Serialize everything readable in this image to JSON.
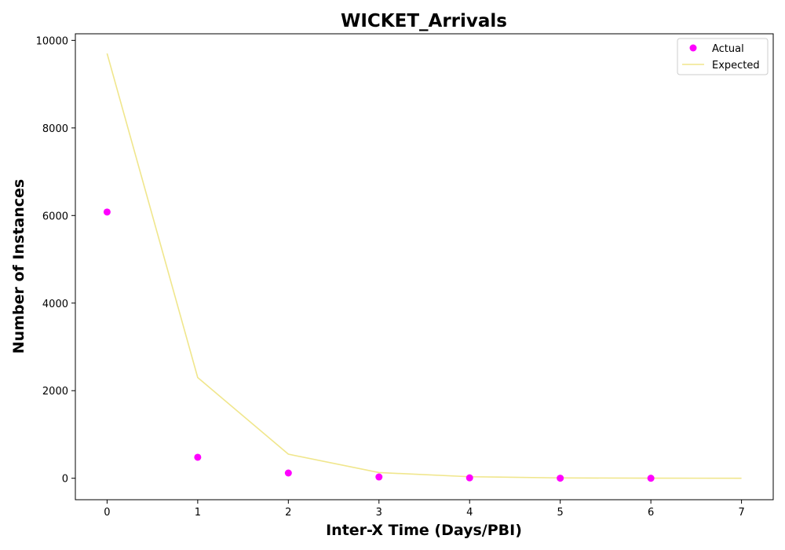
{
  "chart_data": {
    "type": "scatter",
    "title": "WICKET_Arrivals",
    "xlabel": "Inter-X Time (Days/PBI)",
    "ylabel": "Number of Instances",
    "xlim": [
      -0.35,
      7.35
    ],
    "ylim": [
      -490,
      10150
    ],
    "x_ticks": [
      0,
      1,
      2,
      3,
      4,
      5,
      6,
      7
    ],
    "y_ticks": [
      0,
      2000,
      4000,
      6000,
      8000,
      10000
    ],
    "grid": false,
    "legend_position": "top-right",
    "series": [
      {
        "name": "Actual",
        "kind": "scatter",
        "color": "#ff00ff",
        "x": [
          0,
          1,
          2,
          3,
          4,
          5,
          6
        ],
        "y": [
          6080,
          480,
          120,
          30,
          10,
          2,
          1
        ]
      },
      {
        "name": "Expected",
        "kind": "line",
        "color": "#f0e68c",
        "x": [
          0,
          1,
          2,
          3,
          4,
          5,
          6,
          7
        ],
        "y": [
          9700,
          2300,
          550,
          130,
          35,
          8,
          2,
          0.5
        ]
      }
    ]
  }
}
